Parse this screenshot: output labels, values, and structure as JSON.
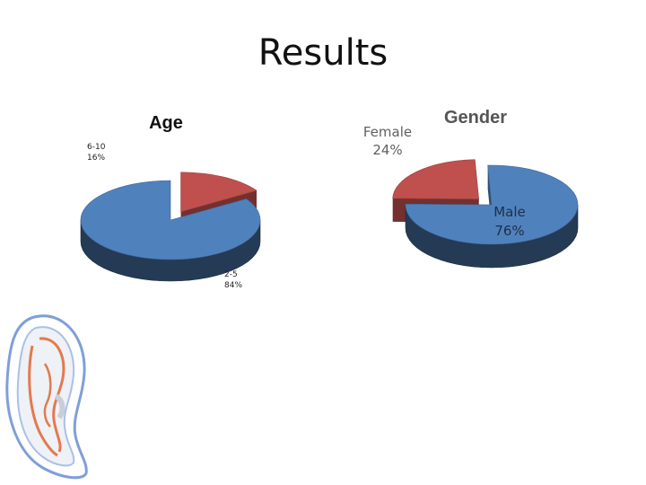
{
  "slide": {
    "title": "Results"
  },
  "chart_data": [
    {
      "type": "pie",
      "title": "Age",
      "categories": [
        "6-10",
        "2-5"
      ],
      "values": [
        16,
        84
      ],
      "value_labels": [
        "16%",
        "84%"
      ],
      "colors": [
        "#c0504d",
        "#4f81bd"
      ],
      "style": "3d-exploded",
      "legend": "none"
    },
    {
      "type": "pie",
      "title": "Gender",
      "categories": [
        "Female",
        "Male"
      ],
      "values": [
        24,
        76
      ],
      "value_labels": [
        "24%",
        "76%"
      ],
      "colors": [
        "#c0504d",
        "#4f81bd"
      ],
      "style": "3d-exploded",
      "legend": "none"
    }
  ]
}
